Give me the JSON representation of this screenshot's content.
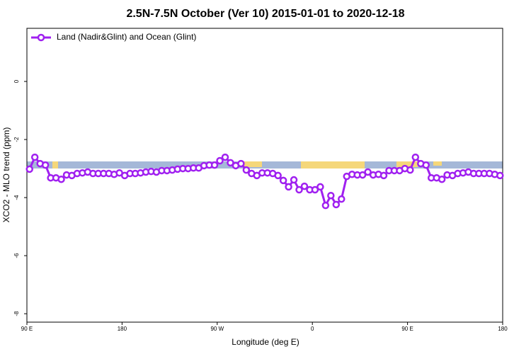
{
  "chart_data": {
    "type": "line",
    "title": "2.5N-7.5N October (Ver 10)   2015-01-01 to 2020-12-18",
    "xlabel": "Longitude (deg E)",
    "ylabel": "XCO2 - MLO trend (ppm)",
    "xlim": [
      90,
      540
    ],
    "ylim": [
      -8.29,
      1.83
    ],
    "xticks": [
      {
        "value": 90,
        "label": "90 E"
      },
      180,
      {
        "value": 270,
        "label": "90 W"
      },
      {
        "value": 360,
        "label": "0"
      },
      {
        "value": 450,
        "label": "90 E"
      },
      {
        "value": 540,
        "label": "180"
      }
    ],
    "yticks": [
      0,
      -2,
      -4,
      -6,
      -8
    ],
    "legend": "top-left",
    "x": [
      92.5,
      97.5,
      102.5,
      107.5,
      112.5,
      117.5,
      122.5,
      127.5,
      132.5,
      137.5,
      142.5,
      147.5,
      152.5,
      157.5,
      162.5,
      167.5,
      172.5,
      177.5,
      182.5,
      187.5,
      192.5,
      197.5,
      202.5,
      207.5,
      212.5,
      217.5,
      222.5,
      227.5,
      232.5,
      237.5,
      242.5,
      247.5,
      252.5,
      257.5,
      262.5,
      267.5,
      272.5,
      277.5,
      282.5,
      287.5,
      292.5,
      297.5,
      302.5,
      307.5,
      312.5,
      317.5,
      322.5,
      327.5,
      332.5,
      337.5,
      342.5,
      347.5,
      352.5,
      357.5,
      362.5,
      367.5,
      372.5,
      377.5,
      382.5,
      387.5,
      392.5,
      397.5,
      402.5,
      407.5,
      412.5,
      417.5,
      422.5,
      427.5,
      432.5,
      437.5,
      442.5,
      447.5,
      452.5,
      457.5,
      462.5,
      467.5,
      472.5,
      477.5,
      482.5,
      487.5,
      492.5,
      497.5,
      502.5,
      507.5,
      512.5,
      517.5,
      522.5,
      527.5,
      532.5,
      537.5
    ],
    "series": [
      {
        "name": "Land (Nadir&Glint) and Ocean (Glint)",
        "color": "#a020f0",
        "values": [
          -3.02,
          -2.61,
          -2.83,
          -2.88,
          -3.32,
          -3.32,
          -3.37,
          -3.22,
          -3.24,
          -3.17,
          -3.15,
          -3.12,
          -3.17,
          -3.17,
          -3.17,
          -3.17,
          -3.2,
          -3.15,
          -3.24,
          -3.17,
          -3.17,
          -3.15,
          -3.12,
          -3.1,
          -3.12,
          -3.07,
          -3.07,
          -3.05,
          -3.02,
          -3.0,
          -3.0,
          -2.98,
          -2.98,
          -2.9,
          -2.88,
          -2.88,
          -2.73,
          -2.61,
          -2.8,
          -2.9,
          -2.83,
          -3.05,
          -3.17,
          -3.24,
          -3.15,
          -3.15,
          -3.17,
          -3.24,
          -3.41,
          -3.63,
          -3.39,
          -3.73,
          -3.61,
          -3.73,
          -3.73,
          -3.63,
          -4.27,
          -3.93,
          -4.24,
          -4.05,
          -3.27,
          -3.2,
          -3.22,
          -3.22,
          -3.12,
          -3.22,
          -3.2,
          -3.24,
          -3.07,
          -3.07,
          -3.07,
          -3.0,
          -3.05,
          -2.61,
          -2.83,
          -2.88,
          -3.32,
          -3.32,
          -3.37,
          -3.22,
          -3.24,
          -3.17,
          -3.15,
          -3.12,
          -3.17,
          -3.17,
          -3.17,
          -3.17,
          -3.2,
          -3.24
        ]
      }
    ]
  }
}
